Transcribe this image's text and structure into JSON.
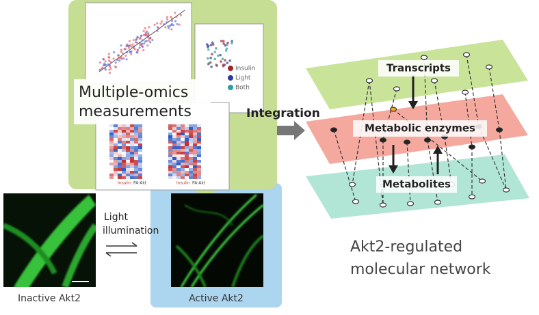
{
  "omics": {
    "title_lines": [
      "Multiple-omics",
      "measurements"
    ],
    "legend": [
      "Insulin",
      "Light",
      "Both"
    ],
    "heatmap_labels": [
      "Insulin",
      "PA-Akt",
      "Insulin",
      "PA-Akt"
    ]
  },
  "integration": "Integration",
  "network": {
    "layers": [
      "Transcripts",
      "Metabolic enzymes",
      "Metabolites"
    ],
    "caption_lines": [
      "Akt2-regulated",
      "molecular network"
    ]
  },
  "microscopy": {
    "transition_lines": [
      "Light",
      "illumination"
    ],
    "images": [
      "Inactive Akt2",
      "Active Akt2"
    ]
  }
}
